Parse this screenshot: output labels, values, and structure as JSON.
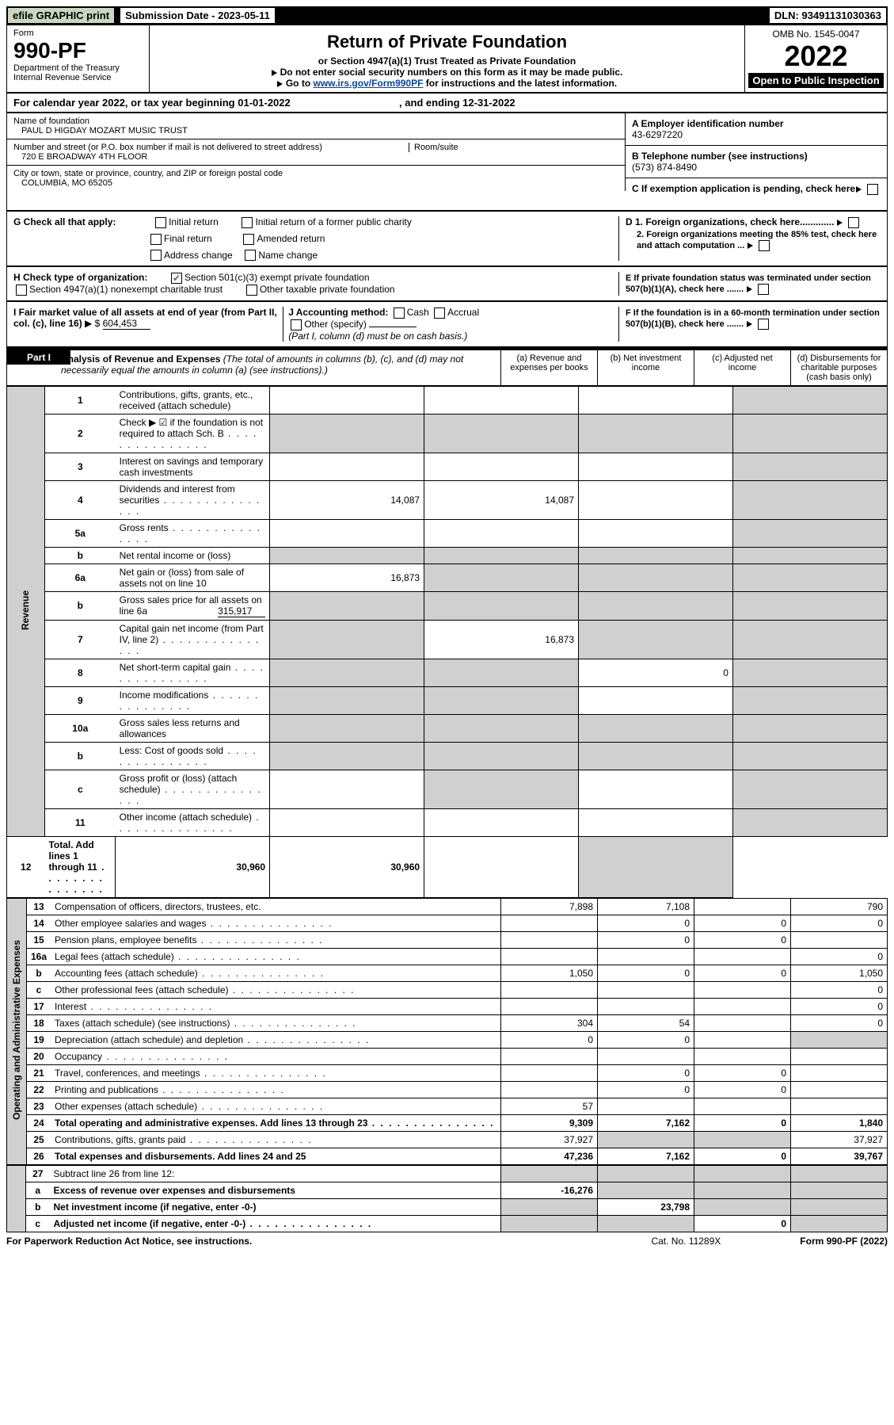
{
  "topbar": {
    "efile": "efile GRAPHIC print",
    "submission_label": "Submission Date - 2023-05-11",
    "dln": "DLN: 93491131030363"
  },
  "header": {
    "form_label": "Form",
    "form_number": "990-PF",
    "dept": "Department of the Treasury",
    "irs": "Internal Revenue Service",
    "title": "Return of Private Foundation",
    "subtitle": "or Section 4947(a)(1) Trust Treated as Private Foundation",
    "instr1": "Do not enter social security numbers on this form as it may be made public.",
    "instr2_pre": "Go to ",
    "instr2_link": "www.irs.gov/Form990PF",
    "instr2_post": " for instructions and the latest information.",
    "omb": "OMB No. 1545-0047",
    "year": "2022",
    "open": "Open to Public Inspection"
  },
  "calendar": {
    "text_pre": "For calendar year 2022, or tax year beginning ",
    "begin": "01-01-2022",
    "text_mid": ", and ending ",
    "end": "12-31-2022"
  },
  "info": {
    "name_label": "Name of foundation",
    "name": "PAUL D HIGDAY MOZART MUSIC TRUST",
    "addr_label": "Number and street (or P.O. box number if mail is not delivered to street address)",
    "room_label": "Room/suite",
    "addr": "720 E BROADWAY 4TH FLOOR",
    "city_label": "City or town, state or province, country, and ZIP or foreign postal code",
    "city": "COLUMBIA, MO  65205",
    "a_label": "A Employer identification number",
    "a_val": "43-6297220",
    "b_label": "B Telephone number (see instructions)",
    "b_val": "(573) 874-8490",
    "c_label": "C If exemption application is pending, check here"
  },
  "checks": {
    "g_label": "G Check all that apply:",
    "initial": "Initial return",
    "initial_former": "Initial return of a former public charity",
    "final": "Final return",
    "amended": "Amended return",
    "address": "Address change",
    "name_change": "Name change",
    "h_label": "H Check type of organization:",
    "h_501": "Section 501(c)(3) exempt private foundation",
    "h_4947": "Section 4947(a)(1) nonexempt charitable trust",
    "h_other": "Other taxable private foundation",
    "i_label": "I Fair market value of all assets at end of year (from Part II, col. (c), line 16) ",
    "i_val": "604,453",
    "j_label": "J Accounting method:",
    "j_cash": "Cash",
    "j_accrual": "Accrual",
    "j_other": "Other (specify)",
    "j_note": "(Part I, column (d) must be on cash basis.)",
    "d1": "D 1. Foreign organizations, check here.............",
    "d2": "2. Foreign organizations meeting the 85% test, check here and attach computation ...",
    "e": "E  If private foundation status was terminated under section 507(b)(1)(A), check here .......",
    "f": "F  If the foundation is in a 60-month termination under section 507(b)(1)(B), check here .......",
    "tri": "▶"
  },
  "part1": {
    "label": "Part I",
    "title": "Analysis of Revenue and Expenses",
    "note": " (The total of amounts in columns (b), (c), and (d) may not necessarily equal the amounts in column (a) (see instructions).)",
    "col_a": "(a)   Revenue and expenses per books",
    "col_b": "(b)   Net investment income",
    "col_c": "(c)   Adjusted net income",
    "col_d": "(d)   Disbursements for charitable purposes (cash basis only)"
  },
  "side": {
    "revenue": "Revenue",
    "expenses": "Operating and Administrative Expenses"
  },
  "rows": [
    {
      "n": "1",
      "label": "Contributions, gifts, grants, etc., received (attach schedule)",
      "a": "",
      "b": "",
      "c": "",
      "d_grey": true
    },
    {
      "n": "2",
      "label": "Check ▶ ☑ if the foundation is not required to attach Sch. B",
      "dots": true,
      "a": "",
      "b": "",
      "c": "",
      "d_grey": true,
      "all_grey_abcd": true
    },
    {
      "n": "3",
      "label": "Interest on savings and temporary cash investments",
      "a": "",
      "b": "",
      "c": "",
      "d_grey": true
    },
    {
      "n": "4",
      "label": "Dividends and interest from securities",
      "dots": true,
      "a": "14,087",
      "b": "14,087",
      "c": "",
      "d_grey": true
    },
    {
      "n": "5a",
      "label": "Gross rents",
      "dots": true,
      "a": "",
      "b": "",
      "c": "",
      "d_grey": true
    },
    {
      "n": "b",
      "label": "Net rental income or (loss)",
      "sub": true,
      "a_grey": true,
      "b_grey": true,
      "c_grey": true,
      "d_grey": true
    },
    {
      "n": "6a",
      "label": "Net gain or (loss) from sale of assets not on line 10",
      "a": "16,873",
      "b_grey": true,
      "c_grey": true,
      "d_grey": true
    },
    {
      "n": "b",
      "label": "Gross sales price for all assets on line 6a",
      "sub": true,
      "inline_val": "315,917",
      "a_grey": true,
      "b_grey": true,
      "c_grey": true,
      "d_grey": true
    },
    {
      "n": "7",
      "label": "Capital gain net income (from Part IV, line 2)",
      "dots": true,
      "a_grey": true,
      "b": "16,873",
      "c_grey": true,
      "d_grey": true
    },
    {
      "n": "8",
      "label": "Net short-term capital gain",
      "dots": true,
      "a_grey": true,
      "b_grey": true,
      "c": "0",
      "d_grey": true
    },
    {
      "n": "9",
      "label": "Income modifications",
      "dots": true,
      "a_grey": true,
      "b_grey": true,
      "c": "",
      "d_grey": true
    },
    {
      "n": "10a",
      "label": "Gross sales less returns and allowances",
      "sub": true,
      "a_grey": true,
      "b_grey": true,
      "c_grey": true,
      "d_grey": true
    },
    {
      "n": "b",
      "label": "Less: Cost of goods sold",
      "dots": true,
      "sub": true,
      "a_grey": true,
      "b_grey": true,
      "c_grey": true,
      "d_grey": true
    },
    {
      "n": "c",
      "label": "Gross profit or (loss) (attach schedule)",
      "dots": true,
      "a": "",
      "b_grey": true,
      "c": "",
      "d_grey": true
    },
    {
      "n": "11",
      "label": "Other income (attach schedule)",
      "dots": true,
      "a": "",
      "b": "",
      "c": "",
      "d_grey": true
    },
    {
      "n": "12",
      "label": "Total. Add lines 1 through 11",
      "dots": true,
      "bold": true,
      "a": "30,960",
      "b": "30,960",
      "c": "",
      "d_grey": true
    }
  ],
  "exp_rows": [
    {
      "n": "13",
      "label": "Compensation of officers, directors, trustees, etc.",
      "a": "7,898",
      "b": "7,108",
      "c": "",
      "d": "790"
    },
    {
      "n": "14",
      "label": "Other employee salaries and wages",
      "dots": true,
      "a": "",
      "b": "0",
      "c": "0",
      "d": "0"
    },
    {
      "n": "15",
      "label": "Pension plans, employee benefits",
      "dots": true,
      "a": "",
      "b": "0",
      "c": "0",
      "d": ""
    },
    {
      "n": "16a",
      "label": "Legal fees (attach schedule)",
      "dots": true,
      "a": "",
      "b": "",
      "c": "",
      "d": "0"
    },
    {
      "n": "b",
      "label": "Accounting fees (attach schedule)",
      "dots": true,
      "a": "1,050",
      "b": "0",
      "c": "0",
      "d": "1,050"
    },
    {
      "n": "c",
      "label": "Other professional fees (attach schedule)",
      "dots": true,
      "a": "",
      "b": "",
      "c": "",
      "d": "0"
    },
    {
      "n": "17",
      "label": "Interest",
      "dots": true,
      "a": "",
      "b": "",
      "c": "",
      "d": "0"
    },
    {
      "n": "18",
      "label": "Taxes (attach schedule) (see instructions)",
      "dots": true,
      "a": "304",
      "b": "54",
      "c": "",
      "d": "0"
    },
    {
      "n": "19",
      "label": "Depreciation (attach schedule) and depletion",
      "dots": true,
      "a": "0",
      "b": "0",
      "c": "",
      "d_grey": true
    },
    {
      "n": "20",
      "label": "Occupancy",
      "dots": true,
      "a": "",
      "b": "",
      "c": "",
      "d": ""
    },
    {
      "n": "21",
      "label": "Travel, conferences, and meetings",
      "dots": true,
      "a": "",
      "b": "0",
      "c": "0",
      "d": ""
    },
    {
      "n": "22",
      "label": "Printing and publications",
      "dots": true,
      "a": "",
      "b": "0",
      "c": "0",
      "d": ""
    },
    {
      "n": "23",
      "label": "Other expenses (attach schedule)",
      "dots": true,
      "a": "57",
      "b": "",
      "c": "",
      "d": ""
    },
    {
      "n": "24",
      "label": "Total operating and administrative expenses. Add lines 13 through 23",
      "dots": true,
      "bold": true,
      "a": "9,309",
      "b": "7,162",
      "c": "0",
      "d": "1,840"
    },
    {
      "n": "25",
      "label": "Contributions, gifts, grants paid",
      "dots": true,
      "a": "37,927",
      "b_grey": true,
      "c_grey": true,
      "d": "37,927"
    },
    {
      "n": "26",
      "label": "Total expenses and disbursements. Add lines 24 and 25",
      "bold": true,
      "a": "47,236",
      "b": "7,162",
      "c": "0",
      "d": "39,767"
    }
  ],
  "sum_rows": [
    {
      "n": "27",
      "label": "Subtract line 26 from line 12:",
      "a_grey": true,
      "b_grey": true,
      "c_grey": true,
      "d_grey": true
    },
    {
      "n": "a",
      "label": "Excess of revenue over expenses and disbursements",
      "bold": true,
      "a": "-16,276",
      "b_grey": true,
      "c_grey": true,
      "d_grey": true
    },
    {
      "n": "b",
      "label": "Net investment income (if negative, enter -0-)",
      "bold": true,
      "a_grey": true,
      "b": "23,798",
      "c_grey": true,
      "d_grey": true
    },
    {
      "n": "c",
      "label": "Adjusted net income (if negative, enter -0-)",
      "dots": true,
      "bold": true,
      "a_grey": true,
      "b_grey": true,
      "c": "0",
      "d_grey": true
    }
  ],
  "footer": {
    "left": "For Paperwork Reduction Act Notice, see instructions.",
    "mid": "Cat. No. 11289X",
    "right": "Form 990-PF (2022)"
  },
  "colors": {
    "black": "#000000",
    "white": "#ffffff",
    "efile_bg": "#c8d8c0",
    "grey_cell": "#d0d0d0",
    "link": "#0046aa",
    "check": "#3a8a3a"
  }
}
